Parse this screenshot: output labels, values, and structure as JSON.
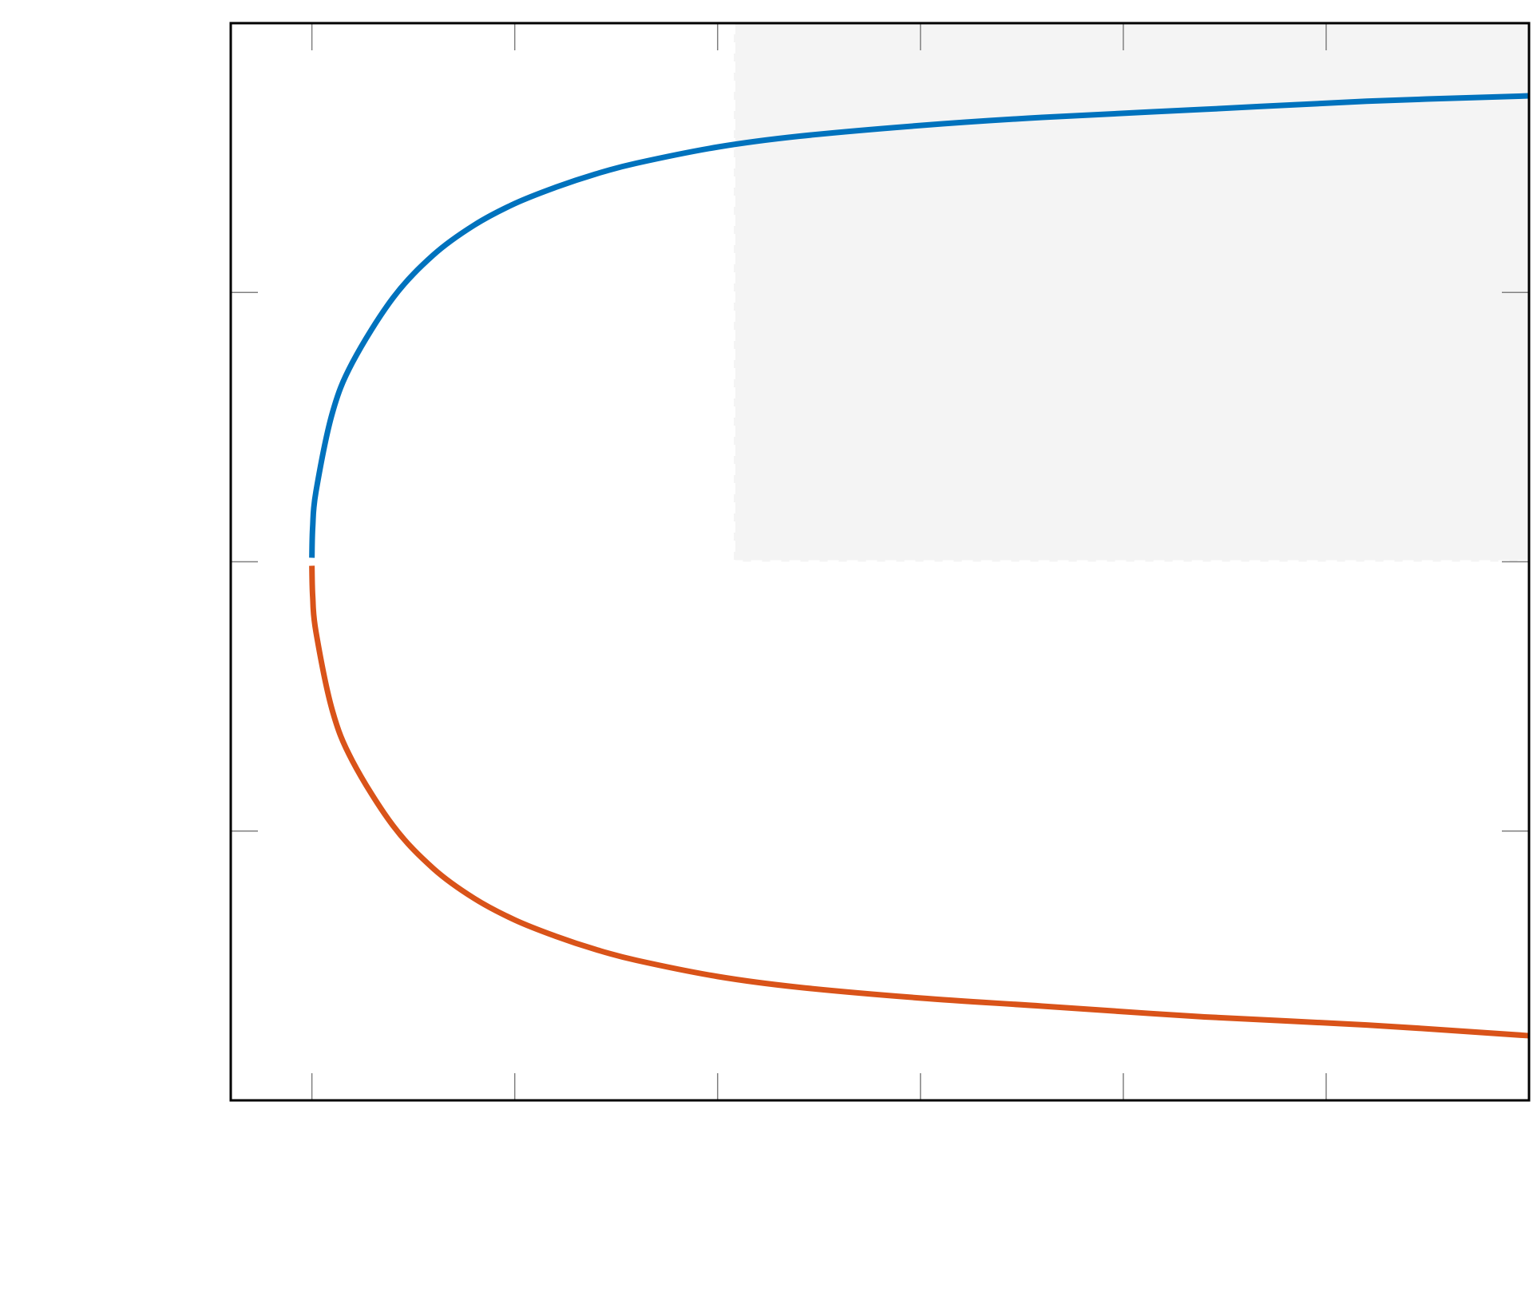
{
  "chart_data": {
    "type": "line",
    "title": "",
    "xlabel": "",
    "ylabel": "",
    "xlim": [
      0.6,
      3.8
    ],
    "ylim": [
      -2,
      2
    ],
    "xticks": [
      0.8,
      1.3,
      1.8,
      2.3,
      2.8,
      3.3
    ],
    "yticks": [
      -1,
      0,
      1
    ],
    "tick_labels_visible": false,
    "grid": false,
    "legend": "none",
    "shaded_region": {
      "x": [
        1.84,
        3.8
      ],
      "y": [
        0,
        2
      ],
      "color": "#f4f4f4",
      "border": "dashed-white"
    },
    "series": [
      {
        "color": "#0072bd",
        "x": [
          0.8,
          0.802,
          0.81,
          0.85,
          0.9,
          1.0,
          1.1,
          1.2,
          1.3,
          1.4,
          1.5,
          1.6,
          1.8,
          2.0,
          2.3,
          2.6,
          3.0,
          3.4,
          3.8
        ],
        "y": [
          0.0,
          0.13,
          0.26,
          0.55,
          0.74,
          0.98,
          1.14,
          1.25,
          1.33,
          1.39,
          1.44,
          1.48,
          1.54,
          1.58,
          1.62,
          1.65,
          1.68,
          1.71,
          1.73
        ]
      },
      {
        "color": "#d95319",
        "x": [
          0.8,
          0.802,
          0.81,
          0.85,
          0.9,
          1.0,
          1.1,
          1.2,
          1.3,
          1.4,
          1.5,
          1.6,
          1.8,
          2.0,
          2.3,
          2.6,
          3.0,
          3.4,
          3.8
        ],
        "y": [
          0.0,
          -0.13,
          -0.26,
          -0.55,
          -0.74,
          -0.98,
          -1.14,
          -1.25,
          -1.33,
          -1.39,
          -1.44,
          -1.48,
          -1.54,
          -1.58,
          -1.62,
          -1.65,
          -1.69,
          -1.72,
          -1.76
        ]
      }
    ]
  }
}
